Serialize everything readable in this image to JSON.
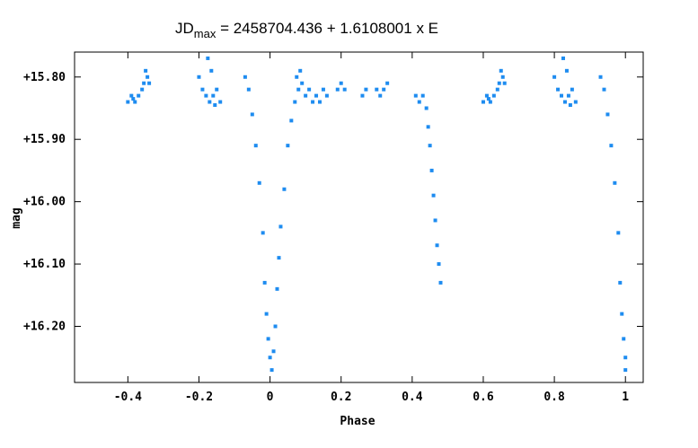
{
  "chart_data": {
    "type": "scatter",
    "title": {
      "main": "JD",
      "subscript": "max",
      "rest": " = 2458704.436 + 1.6108001 x E"
    },
    "xlabel": "Phase",
    "ylabel": "mag",
    "xlim": [
      -0.55,
      1.05
    ],
    "ylim": [
      15.76,
      16.29
    ],
    "y_inverted": true,
    "grid": false,
    "marker_color": "#1e8cf0",
    "x_ticks": [
      {
        "value": -0.4,
        "label": "-0.4"
      },
      {
        "value": -0.2,
        "label": "-0.2"
      },
      {
        "value": 0,
        "label": "0"
      },
      {
        "value": 0.2,
        "label": "0.2"
      },
      {
        "value": 0.4,
        "label": "0.4"
      },
      {
        "value": 0.6,
        "label": "0.6"
      },
      {
        "value": 0.8,
        "label": "0.8"
      },
      {
        "value": 1,
        "label": "1"
      }
    ],
    "y_ticks": [
      {
        "value": 15.8,
        "label": "+15.80"
      },
      {
        "value": 15.9,
        "label": "+15.90"
      },
      {
        "value": 16.0,
        "label": "+16.00"
      },
      {
        "value": 16.1,
        "label": "+16.10"
      },
      {
        "value": 16.2,
        "label": "+16.20"
      }
    ],
    "series": [
      {
        "points": [
          [
            -0.4,
            15.84
          ],
          [
            -0.39,
            15.83
          ],
          [
            -0.38,
            15.84
          ],
          [
            -0.37,
            15.83
          ],
          [
            -0.36,
            15.82
          ],
          [
            -0.355,
            15.81
          ],
          [
            -0.35,
            15.79
          ],
          [
            -0.345,
            15.8
          ],
          [
            -0.34,
            15.81
          ],
          [
            -0.385,
            15.835
          ],
          [
            -0.19,
            15.82
          ],
          [
            -0.18,
            15.83
          ],
          [
            -0.17,
            15.84
          ],
          [
            -0.16,
            15.83
          ],
          [
            -0.15,
            15.82
          ],
          [
            -0.14,
            15.84
          ],
          [
            -0.175,
            15.77
          ],
          [
            -0.165,
            15.79
          ],
          [
            -0.2,
            15.8
          ],
          [
            -0.155,
            15.845
          ],
          [
            -0.07,
            15.8
          ],
          [
            -0.06,
            15.82
          ],
          [
            -0.05,
            15.86
          ],
          [
            -0.04,
            15.91
          ],
          [
            -0.03,
            15.97
          ],
          [
            -0.02,
            16.05
          ],
          [
            -0.015,
            16.13
          ],
          [
            -0.01,
            16.18
          ],
          [
            -0.005,
            16.22
          ],
          [
            0.0,
            16.25
          ],
          [
            0.005,
            16.27
          ],
          [
            0.01,
            16.24
          ],
          [
            0.015,
            16.2
          ],
          [
            0.02,
            16.14
          ],
          [
            0.025,
            16.09
          ],
          [
            0.03,
            16.04
          ],
          [
            0.04,
            15.98
          ],
          [
            0.05,
            15.91
          ],
          [
            0.06,
            15.87
          ],
          [
            0.07,
            15.84
          ],
          [
            0.08,
            15.82
          ],
          [
            0.09,
            15.81
          ],
          [
            0.075,
            15.8
          ],
          [
            0.085,
            15.79
          ],
          [
            0.1,
            15.83
          ],
          [
            0.11,
            15.82
          ],
          [
            0.12,
            15.84
          ],
          [
            0.13,
            15.83
          ],
          [
            0.14,
            15.84
          ],
          [
            0.15,
            15.82
          ],
          [
            0.16,
            15.83
          ],
          [
            0.19,
            15.82
          ],
          [
            0.2,
            15.81
          ],
          [
            0.21,
            15.82
          ],
          [
            0.26,
            15.83
          ],
          [
            0.27,
            15.82
          ],
          [
            0.3,
            15.82
          ],
          [
            0.31,
            15.83
          ],
          [
            0.32,
            15.82
          ],
          [
            0.33,
            15.81
          ],
          [
            0.41,
            15.83
          ],
          [
            0.42,
            15.84
          ],
          [
            0.43,
            15.83
          ],
          [
            0.44,
            15.85
          ],
          [
            0.445,
            15.88
          ],
          [
            0.45,
            15.91
          ],
          [
            0.455,
            15.95
          ],
          [
            0.46,
            15.99
          ],
          [
            0.465,
            16.03
          ],
          [
            0.47,
            16.07
          ],
          [
            0.475,
            16.1
          ],
          [
            0.48,
            16.13
          ],
          [
            0.6,
            15.84
          ],
          [
            0.61,
            15.83
          ],
          [
            0.62,
            15.84
          ],
          [
            0.63,
            15.83
          ],
          [
            0.64,
            15.82
          ],
          [
            0.645,
            15.81
          ],
          [
            0.65,
            15.79
          ],
          [
            0.655,
            15.8
          ],
          [
            0.66,
            15.81
          ],
          [
            0.615,
            15.835
          ],
          [
            0.81,
            15.82
          ],
          [
            0.82,
            15.83
          ],
          [
            0.83,
            15.84
          ],
          [
            0.84,
            15.83
          ],
          [
            0.85,
            15.82
          ],
          [
            0.86,
            15.84
          ],
          [
            0.825,
            15.77
          ],
          [
            0.835,
            15.79
          ],
          [
            0.8,
            15.8
          ],
          [
            0.845,
            15.845
          ],
          [
            0.93,
            15.8
          ],
          [
            0.94,
            15.82
          ],
          [
            0.95,
            15.86
          ],
          [
            0.96,
            15.91
          ],
          [
            0.97,
            15.97
          ],
          [
            0.98,
            16.05
          ],
          [
            0.985,
            16.13
          ],
          [
            0.99,
            16.18
          ],
          [
            0.995,
            16.22
          ],
          [
            1.0,
            16.25
          ],
          [
            1.0,
            16.27
          ]
        ]
      }
    ]
  }
}
